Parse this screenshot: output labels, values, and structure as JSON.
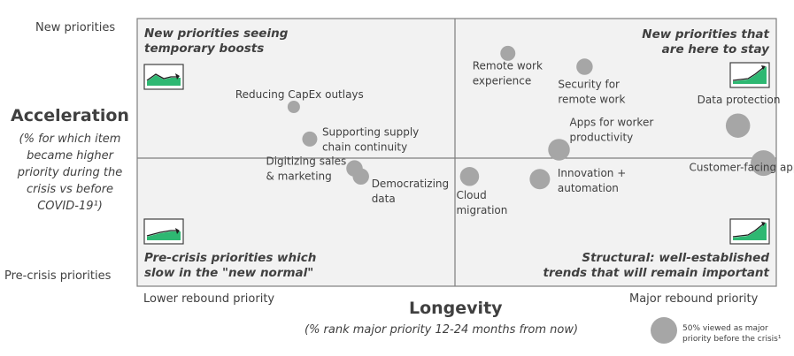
{
  "chart_data": {
    "type": "scatter",
    "ylabel": "Acceleration",
    "ylabel_sub_lines": [
      "(% for which item",
      "became higher",
      "priority during the",
      "crisis vs before",
      "COVID-19¹)"
    ],
    "xlabel": "Longevity",
    "xlabel_sub": "(% rank major priority 12-24 months from now)",
    "y_tick_labels": {
      "top": "New priorities",
      "bottom": "Pre-crisis priorities"
    },
    "x_tick_labels": {
      "left": "Lower rebound priority",
      "right": "Major rebound priority"
    },
    "quadrants": [
      {
        "position": "top-left",
        "lines": [
          "New priorities seeing",
          "temporary boosts"
        ]
      },
      {
        "position": "top-right",
        "lines": [
          "New priorities that",
          "are here to stay"
        ]
      },
      {
        "position": "bottom-left",
        "lines": [
          "Pre-crisis priorities which",
          "slow in the \"new normal\""
        ]
      },
      {
        "position": "bottom-right",
        "lines": [
          "Structural: well-established",
          "trends that will remain important"
        ]
      }
    ],
    "x_range": [
      0,
      100
    ],
    "y_range": [
      0,
      100
    ],
    "grid": false,
    "points": [
      {
        "name_lines": [
          "Reducing CapEx outlays"
        ],
        "x": 24.5,
        "y": 67,
        "size": 2
      },
      {
        "name_lines": [
          "Supporting supply",
          "chain continuity"
        ],
        "x": 27,
        "y": 55,
        "size": 3
      },
      {
        "name_lines": [
          "Digitizing sales",
          "& marketing"
        ],
        "x": 34,
        "y": 44,
        "size": 3.5
      },
      {
        "name_lines": [
          "Democratizing",
          "data"
        ],
        "x": 35,
        "y": 41,
        "size": 3.5
      },
      {
        "name_lines": [
          "Remote work",
          "experience"
        ],
        "x": 58,
        "y": 87,
        "size": 3
      },
      {
        "name_lines": [
          "Security for",
          "remote work"
        ],
        "x": 70,
        "y": 82,
        "size": 3.5
      },
      {
        "name_lines": [
          "Data protection"
        ],
        "x": 94,
        "y": 60,
        "size": 6.5
      },
      {
        "name_lines": [
          "Apps for worker",
          "productivity"
        ],
        "x": 66,
        "y": 51,
        "size": 5.5
      },
      {
        "name_lines": [
          "Customer-facing apps"
        ],
        "x": 98,
        "y": 46,
        "size": 7
      },
      {
        "name_lines": [
          "Cloud",
          "migration"
        ],
        "x": 52,
        "y": 41,
        "size": 4.5
      },
      {
        "name_lines": [
          "Innovation +",
          "automation"
        ],
        "x": 63,
        "y": 40,
        "size": 5
      }
    ],
    "legend": {
      "label_lines": [
        "50% viewed as major",
        "priority before the crisis¹"
      ]
    },
    "colors": {
      "bubble": "#a6a6a6",
      "quadrant_fill": "#f2f2f2",
      "border": "#7f7f7f",
      "icon_green": "#2eb872"
    }
  }
}
